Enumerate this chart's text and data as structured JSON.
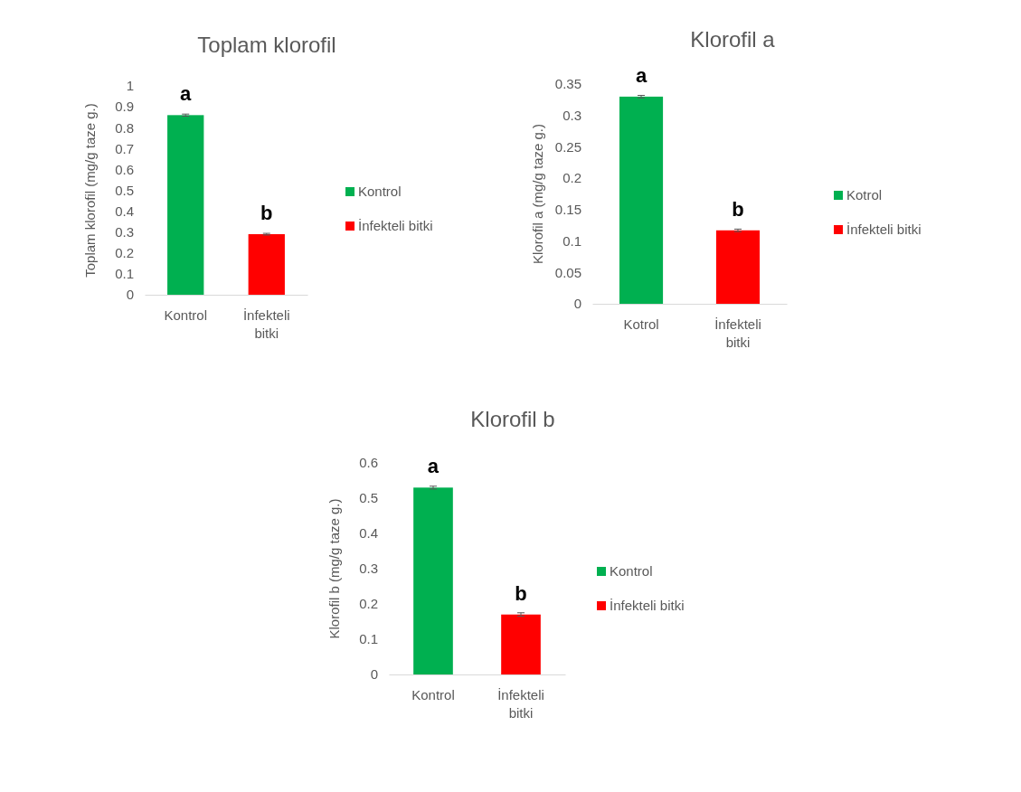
{
  "chart_data": [
    {
      "type": "bar",
      "title": "Toplam klorofil",
      "ylabel": "Toplam klorofil (mg/g taze g.)",
      "categories": [
        "Kontrol",
        "İnfekteli bitki"
      ],
      "series": [
        {
          "name": "Kontrol",
          "color": "#00b050",
          "values": [
            0.86,
            null
          ],
          "errors": [
            0.005,
            null
          ]
        },
        {
          "name": "İnfekteli bitki",
          "color": "#ff0000",
          "values": [
            null,
            0.29
          ],
          "errors": [
            null,
            0.004
          ]
        }
      ],
      "ylim": [
        0,
        1
      ],
      "yticks": [
        0,
        0.1,
        0.2,
        0.3,
        0.4,
        0.5,
        0.6,
        0.7,
        0.8,
        0.9,
        1
      ],
      "legend": "right",
      "annotations": [
        {
          "text": "a",
          "x": "Kontrol",
          "y": 0.86
        },
        {
          "text": "b",
          "x": "İnfekteli bitki",
          "y": 0.29
        }
      ]
    },
    {
      "type": "bar",
      "title": "Klorofil a",
      "ylabel": "Klorofil a (mg/g taze g.)",
      "categories": [
        "Kotrol",
        "İnfekteli bitki"
      ],
      "series": [
        {
          "name": "Kotrol",
          "color": "#00b050",
          "values": [
            0.33,
            null
          ],
          "errors": [
            0.002,
            null
          ]
        },
        {
          "name": "İnfekteli bitki",
          "color": "#ff0000",
          "values": [
            null,
            0.117
          ],
          "errors": [
            null,
            0.002
          ]
        }
      ],
      "ylim": [
        0,
        0.35
      ],
      "yticks": [
        0,
        0.05,
        0.1,
        0.15,
        0.2,
        0.25,
        0.3,
        0.35
      ],
      "legend": "right",
      "annotations": [
        {
          "text": "a",
          "x": "Kotrol",
          "y": 0.33
        },
        {
          "text": "b",
          "x": "İnfekteli bitki",
          "y": 0.117
        }
      ]
    },
    {
      "type": "bar",
      "title": "Klorofil b",
      "ylabel": "Klorofil b (mg/g taze g.)",
      "categories": [
        "Kontrol",
        "İnfekteli bitki"
      ],
      "series": [
        {
          "name": "Kontrol",
          "color": "#00b050",
          "values": [
            0.53,
            null
          ],
          "errors": [
            0.004,
            null
          ]
        },
        {
          "name": "İnfekteli bitki",
          "color": "#ff0000",
          "values": [
            null,
            0.17
          ],
          "errors": [
            null,
            0.005
          ]
        }
      ],
      "ylim": [
        0,
        0.6
      ],
      "yticks": [
        0,
        0.1,
        0.2,
        0.3,
        0.4,
        0.5,
        0.6
      ],
      "legend": "right",
      "annotations": [
        {
          "text": "a",
          "x": "Kontrol",
          "y": 0.53
        },
        {
          "text": "b",
          "x": "İnfekteli bitki",
          "y": 0.17
        }
      ]
    }
  ]
}
